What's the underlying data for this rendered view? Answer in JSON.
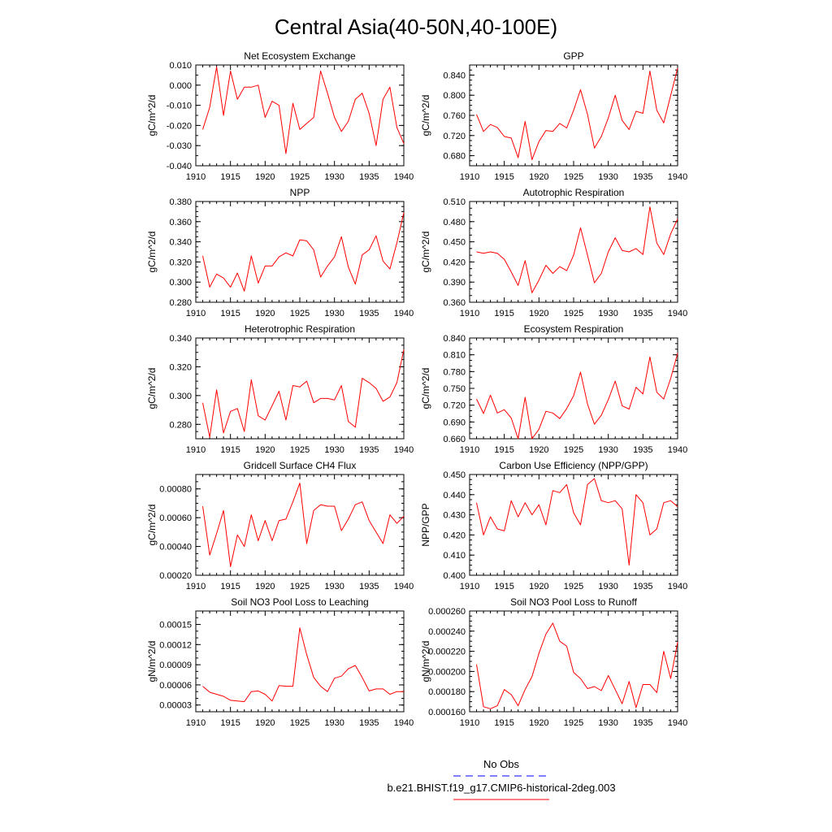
{
  "title": "Central Asia(40-50N,40-100E)",
  "xticks": [
    1910,
    1915,
    1920,
    1925,
    1930,
    1935,
    1940
  ],
  "years": [
    1911,
    1912,
    1913,
    1914,
    1915,
    1916,
    1917,
    1918,
    1919,
    1920,
    1921,
    1922,
    1923,
    1924,
    1925,
    1926,
    1927,
    1928,
    1929,
    1930,
    1931,
    1932,
    1933,
    1934,
    1935,
    1936,
    1937,
    1938,
    1939,
    1940
  ],
  "chart_data": [
    {
      "type": "line",
      "title": "Net Ecosystem Exchange",
      "ylabel": "gC/m^2/d",
      "xlim": [
        1910,
        1940
      ],
      "ylim": [
        -0.04,
        0.01
      ],
      "yticks": [
        "0.010",
        "0.000",
        "-0.010",
        "-0.020",
        "-0.030",
        "-0.040"
      ],
      "ytick_values": [
        0.01,
        0.0,
        -0.01,
        -0.02,
        -0.03,
        -0.04
      ],
      "minor_step": 0.005,
      "values": [
        -0.022,
        -0.011,
        0.009,
        -0.015,
        0.007,
        -0.007,
        -0.001,
        -0.001,
        0.0,
        -0.016,
        -0.008,
        -0.01,
        -0.034,
        -0.009,
        -0.022,
        -0.019,
        -0.016,
        0.007,
        -0.004,
        -0.016,
        -0.023,
        -0.018,
        -0.007,
        -0.004,
        -0.014,
        -0.03,
        -0.007,
        -0.001,
        -0.021,
        -0.029
      ]
    },
    {
      "type": "line",
      "title": "GPP",
      "ylabel": "gC/m^2/d",
      "xlim": [
        1910,
        1940
      ],
      "ylim": [
        0.66,
        0.86
      ],
      "yticks": [
        "0.840",
        "0.800",
        "0.760",
        "0.720",
        "0.680"
      ],
      "ytick_values": [
        0.84,
        0.8,
        0.76,
        0.72,
        0.68
      ],
      "minor_step": 0.01,
      "values": [
        0.762,
        0.728,
        0.742,
        0.736,
        0.718,
        0.715,
        0.676,
        0.748,
        0.672,
        0.708,
        0.73,
        0.728,
        0.744,
        0.735,
        0.77,
        0.811,
        0.762,
        0.695,
        0.718,
        0.755,
        0.8,
        0.75,
        0.732,
        0.768,
        0.764,
        0.848,
        0.77,
        0.745,
        0.8,
        0.854
      ]
    },
    {
      "type": "line",
      "title": "NPP",
      "ylabel": "gC/m^2/d",
      "xlim": [
        1910,
        1940
      ],
      "ylim": [
        0.28,
        0.38
      ],
      "yticks": [
        "0.380",
        "0.360",
        "0.340",
        "0.320",
        "0.300",
        "0.280"
      ],
      "ytick_values": [
        0.38,
        0.36,
        0.34,
        0.32,
        0.3,
        0.28
      ],
      "minor_step": 0.005,
      "values": [
        0.326,
        0.295,
        0.308,
        0.304,
        0.295,
        0.309,
        0.291,
        0.326,
        0.299,
        0.316,
        0.316,
        0.325,
        0.329,
        0.326,
        0.342,
        0.341,
        0.332,
        0.305,
        0.316,
        0.325,
        0.345,
        0.315,
        0.298,
        0.327,
        0.332,
        0.346,
        0.321,
        0.313,
        0.339,
        0.369
      ]
    },
    {
      "type": "line",
      "title": "Autotrophic Respiration",
      "ylabel": "gC/m^2/d",
      "xlim": [
        1910,
        1940
      ],
      "ylim": [
        0.36,
        0.51
      ],
      "yticks": [
        "0.510",
        "0.480",
        "0.450",
        "0.420",
        "0.390",
        "0.360"
      ],
      "ytick_values": [
        0.51,
        0.48,
        0.45,
        0.42,
        0.39,
        0.36
      ],
      "minor_step": 0.01,
      "values": [
        0.435,
        0.433,
        0.435,
        0.433,
        0.424,
        0.405,
        0.385,
        0.422,
        0.374,
        0.393,
        0.415,
        0.403,
        0.413,
        0.407,
        0.43,
        0.471,
        0.43,
        0.389,
        0.403,
        0.435,
        0.456,
        0.437,
        0.435,
        0.44,
        0.431,
        0.502,
        0.448,
        0.431,
        0.462,
        0.484
      ]
    },
    {
      "type": "line",
      "title": "Heterotrophic Respiration",
      "ylabel": "gC/m^2/d",
      "xlim": [
        1910,
        1940
      ],
      "ylim": [
        0.27,
        0.34
      ],
      "yticks": [
        "0.340",
        "0.320",
        "0.300",
        "0.280"
      ],
      "ytick_values": [
        0.34,
        0.32,
        0.3,
        0.28
      ],
      "minor_step": 0.005,
      "values": [
        0.295,
        0.271,
        0.304,
        0.274,
        0.289,
        0.291,
        0.275,
        0.311,
        0.286,
        0.283,
        0.293,
        0.303,
        0.283,
        0.307,
        0.306,
        0.31,
        0.295,
        0.298,
        0.298,
        0.297,
        0.307,
        0.282,
        0.278,
        0.312,
        0.309,
        0.305,
        0.296,
        0.299,
        0.309,
        0.332
      ]
    },
    {
      "type": "line",
      "title": "Ecosystem Respiration",
      "ylabel": "gC/m^2/d",
      "xlim": [
        1910,
        1940
      ],
      "ylim": [
        0.66,
        0.84
      ],
      "yticks": [
        "0.840",
        "0.810",
        "0.780",
        "0.750",
        "0.720",
        "0.690",
        "0.660"
      ],
      "ytick_values": [
        0.84,
        0.81,
        0.78,
        0.75,
        0.72,
        0.69,
        0.66
      ],
      "minor_step": 0.01,
      "values": [
        0.731,
        0.705,
        0.738,
        0.706,
        0.712,
        0.697,
        0.66,
        0.734,
        0.66,
        0.677,
        0.709,
        0.706,
        0.696,
        0.714,
        0.737,
        0.779,
        0.722,
        0.686,
        0.702,
        0.73,
        0.763,
        0.719,
        0.713,
        0.752,
        0.74,
        0.806,
        0.743,
        0.731,
        0.768,
        0.813
      ]
    },
    {
      "type": "line",
      "title": "Gridcell Surface CH4 Flux",
      "ylabel": "gC/m^2/d",
      "xlim": [
        1910,
        1940
      ],
      "ylim": [
        0.0002,
        0.0009
      ],
      "yticks": [
        "0.00080",
        "0.00060",
        "0.00040",
        "0.00020"
      ],
      "ytick_values": [
        0.0008,
        0.0006,
        0.0004,
        0.0002
      ],
      "minor_step": 5e-05,
      "values": [
        0.00068,
        0.00034,
        0.00049,
        0.00065,
        0.00026,
        0.00048,
        0.0004,
        0.00062,
        0.00044,
        0.00058,
        0.00044,
        0.00058,
        0.00059,
        0.00071,
        0.00084,
        0.00042,
        0.00065,
        0.00069,
        0.00068,
        0.00068,
        0.00051,
        0.00059,
        0.00069,
        0.00071,
        0.00058,
        0.0005,
        0.00042,
        0.00062,
        0.00056,
        0.00061
      ]
    },
    {
      "type": "line",
      "title": "Carbon Use Efficiency (NPP/GPP)",
      "ylabel": "NPP/GPP",
      "xlim": [
        1910,
        1940
      ],
      "ylim": [
        0.4,
        0.45
      ],
      "yticks": [
        "0.450",
        "0.440",
        "0.430",
        "0.420",
        "0.410",
        "0.400"
      ],
      "ytick_values": [
        0.45,
        0.44,
        0.43,
        0.42,
        0.41,
        0.4
      ],
      "minor_step": 0.0025,
      "values": [
        0.436,
        0.42,
        0.429,
        0.423,
        0.422,
        0.437,
        0.429,
        0.436,
        0.43,
        0.435,
        0.425,
        0.442,
        0.441,
        0.445,
        0.431,
        0.425,
        0.445,
        0.448,
        0.437,
        0.436,
        0.437,
        0.433,
        0.405,
        0.44,
        0.436,
        0.42,
        0.423,
        0.436,
        0.437,
        0.434
      ]
    },
    {
      "type": "line",
      "title": "Soil NO3 Pool Loss to Leaching",
      "ylabel": "gN/m^2/d",
      "xlim": [
        1910,
        1940
      ],
      "ylim": [
        2e-05,
        0.00017
      ],
      "yticks": [
        "0.00015",
        "0.00012",
        "0.00009",
        "0.00006",
        "0.00003"
      ],
      "ytick_values": [
        0.00015,
        0.00012,
        9e-05,
        6e-05,
        3e-05
      ],
      "minor_step": 1e-05,
      "values": [
        5.8e-05,
        4.9e-05,
        4.6e-05,
        4.3e-05,
        3.7e-05,
        3.6e-05,
        3.5e-05,
        5e-05,
        5.1e-05,
        4.6e-05,
        3.6e-05,
        5.9e-05,
        5.8e-05,
        5.8e-05,
        0.000145,
        0.000105,
        7.1e-05,
        5.8e-05,
        5e-05,
        7e-05,
        7.3e-05,
        8.4e-05,
        8.9e-05,
        7.1e-05,
        5.1e-05,
        5.4e-05,
        5.4e-05,
        4.6e-05,
        5e-05,
        5e-05
      ]
    },
    {
      "type": "line",
      "title": "Soil NO3 Pool Loss to Runoff",
      "ylabel": "gN/m^2/d",
      "xlim": [
        1910,
        1940
      ],
      "ylim": [
        0.00016,
        0.00026
      ],
      "yticks": [
        "0.000260",
        "0.000240",
        "0.000220",
        "0.000200",
        "0.000180",
        "0.000160"
      ],
      "ytick_values": [
        0.00026,
        0.00024,
        0.00022,
        0.0002,
        0.00018,
        0.00016
      ],
      "minor_step": 5e-06,
      "values": [
        0.000207,
        0.000165,
        0.000163,
        0.000166,
        0.000182,
        0.000177,
        0.000166,
        0.000182,
        0.000195,
        0.000218,
        0.000237,
        0.000248,
        0.00023,
        0.000225,
        0.000199,
        0.000193,
        0.000183,
        0.000185,
        0.000181,
        0.000196,
        0.000182,
        0.000168,
        0.00019,
        0.000164,
        0.000187,
        0.000187,
        0.000179,
        0.00022,
        0.000193,
        0.000229
      ]
    }
  ],
  "legend": {
    "placement": "bottom-center",
    "entries": [
      {
        "label": "No Obs",
        "color": "#0000ff",
        "style": "dashed"
      },
      {
        "label": "b.e21.BHIST.f19_g17.CMIP6-historical-2deg.003",
        "color": "#ff0000",
        "style": "solid"
      }
    ]
  }
}
